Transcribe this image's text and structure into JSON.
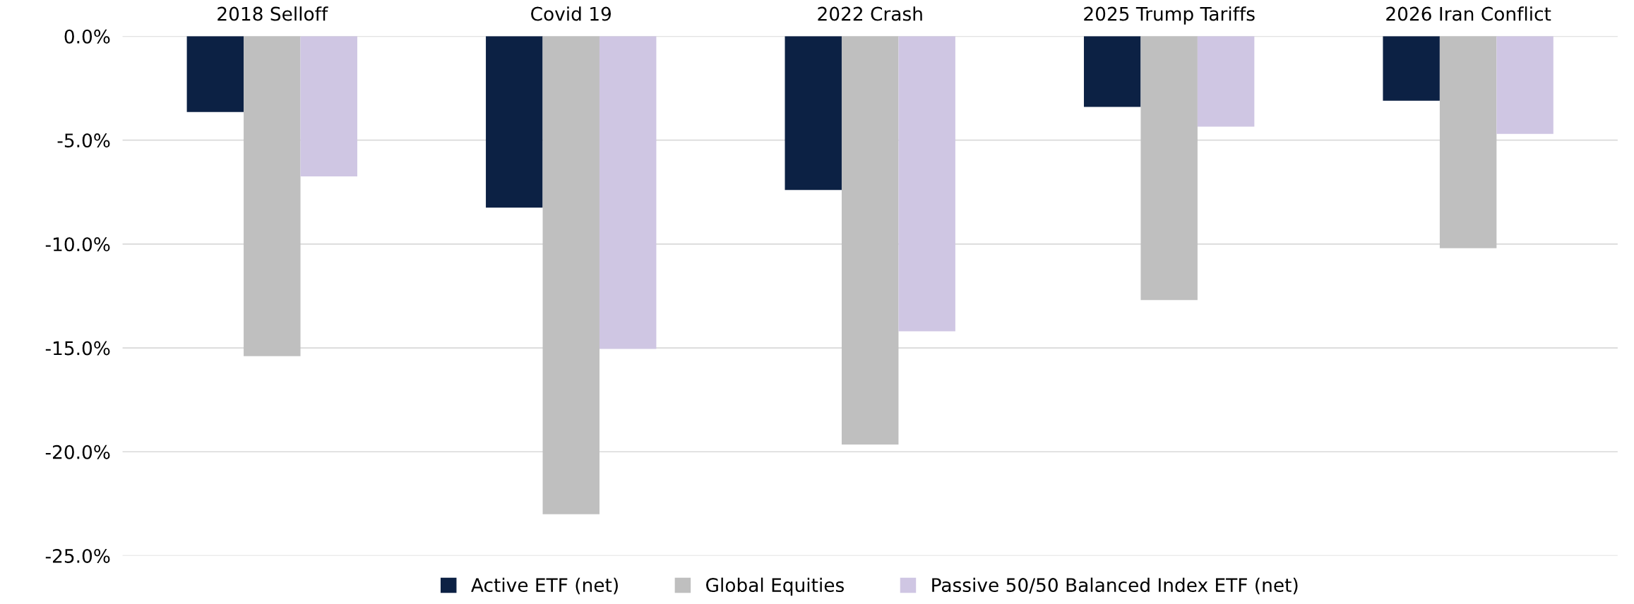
{
  "chart_data": {
    "type": "bar",
    "categories": [
      "2018 Selloff",
      "Covid 19",
      "2022 Crash",
      "2025 Trump Tariffs",
      "2026 Iran Conflict"
    ],
    "series": [
      {
        "name": "Active ETF (net)",
        "color": "#0c2144",
        "values": [
          -3.65,
          -8.25,
          -7.4,
          -3.4,
          -3.1
        ]
      },
      {
        "name": "Global Equities",
        "color": "#bfbfbf",
        "values": [
          -15.4,
          -23.0,
          -19.65,
          -12.7,
          -10.2
        ]
      },
      {
        "name": "Passive 50/50 Balanced Index ETF (net)",
        "color": "#cfc6e3",
        "values": [
          -6.75,
          -15.05,
          -14.2,
          -4.35,
          -4.7
        ]
      }
    ],
    "ylim": [
      -25,
      0
    ],
    "yticks": [
      {
        "value": 0,
        "label": "0.0%"
      },
      {
        "value": -5,
        "label": "-5.0%"
      },
      {
        "value": -10,
        "label": "-10.0%"
      },
      {
        "value": -15,
        "label": "-15.0%"
      },
      {
        "value": -20,
        "label": "-20.0%"
      },
      {
        "value": -25,
        "label": "-25.0%"
      }
    ],
    "grid": "y",
    "legend": "bottom"
  }
}
